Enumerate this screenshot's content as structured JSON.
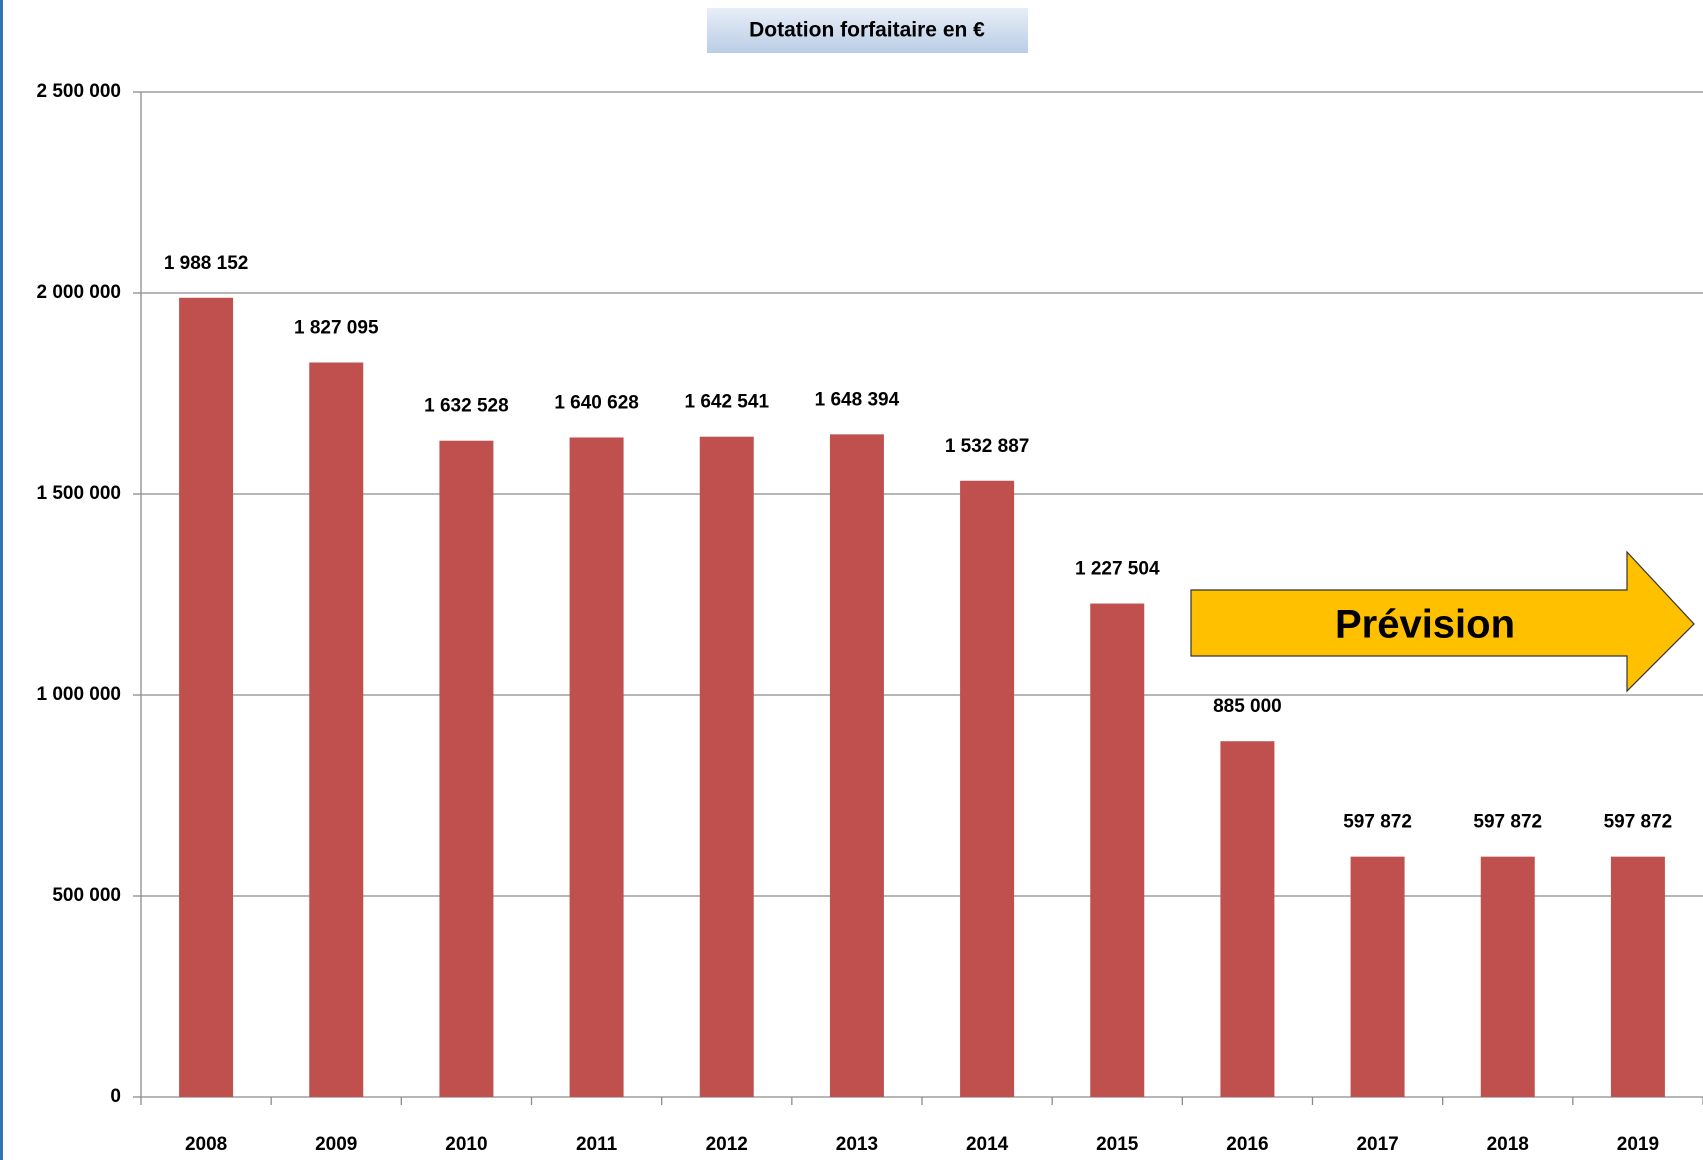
{
  "chart_data": {
    "type": "bar",
    "title": "Dotation forfaitaire en €",
    "categories": [
      "2008",
      "2009",
      "2010",
      "2011",
      "2012",
      "2013",
      "2014",
      "2015",
      "2016",
      "2017",
      "2018",
      "2019"
    ],
    "values": [
      1988152,
      1827095,
      1632528,
      1640628,
      1642541,
      1648394,
      1532887,
      1227504,
      885000,
      597872,
      597872,
      597872
    ],
    "value_labels": [
      "1 988 152",
      "1 827 095",
      "1 632 528",
      "1 640 628",
      "1 642 541",
      "1 648 394",
      "1 532 887",
      "1 227 504",
      "885 000",
      "597 872",
      "597 872",
      "597 872"
    ],
    "color": "#c0504d",
    "ylim": [
      0,
      2500000
    ],
    "yticks": [
      0,
      {
        "value": 500000,
        "label": "500 000"
      },
      {
        "value": 1000000,
        "label": "1 000 000"
      },
      {
        "value": 1500000,
        "label": "1 500 000"
      },
      {
        "value": 2000000,
        "label": "2 000 000"
      },
      {
        "value": 2500000,
        "label": "2 500 000"
      }
    ],
    "grid": true,
    "annotation": "Prévision"
  }
}
